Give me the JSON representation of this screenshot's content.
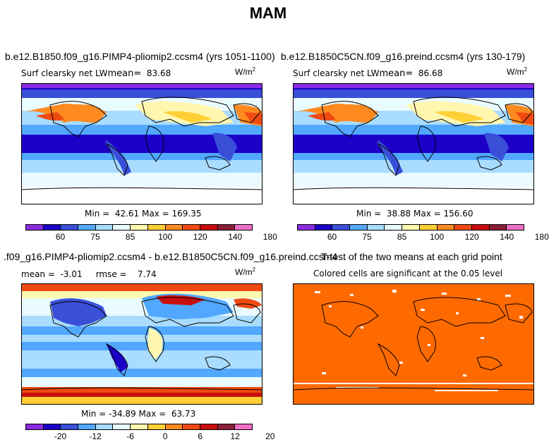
{
  "figure_title": "MAM",
  "colors": {
    "abs_scale": [
      "#8a2be2",
      "#1c00c8",
      "#3a4fd8",
      "#52a8ff",
      "#a9dcff",
      "#e9fbff",
      "#fff7b0",
      "#ffcf36",
      "#ff8a1f",
      "#f04a12",
      "#c80d0d",
      "#8c1f3a",
      "#f070c8"
    ],
    "diff_scale": [
      "#8a2be2",
      "#1c00c8",
      "#3a4fd8",
      "#52a8ff",
      "#a9dcff",
      "#e9fbff",
      "#fff7b0",
      "#ffcf36",
      "#ff8a1f",
      "#f04a12",
      "#c80d0d",
      "#8c1f3a",
      "#f070c8"
    ],
    "ttest_fill": "#ff6a00",
    "coast": "#000000"
  },
  "panels": {
    "p1": {
      "case": "b.e12.B1850.f09_g16.PIMP4-pliomip2.ccsm4 (yrs 1051-1100)",
      "variable": "Surf clearsky net LW",
      "mean_label": "mean=",
      "mean_value": "83.68",
      "units": "W/m",
      "units_sup": "2",
      "min_label": "Min =",
      "min_value": "42.61",
      "max_label": "Max =",
      "max_value": "169.35",
      "ticks": [
        "60",
        "75",
        "85",
        "100",
        "120",
        "140",
        "180"
      ]
    },
    "p2": {
      "case": "b.e12.B1850C5CN.f09_g16.preind.ccsm4 (yrs 130-179)",
      "variable": "Surf clearsky net LW",
      "mean_label": "mean=",
      "mean_value": "86.68",
      "units": "W/m",
      "units_sup": "2",
      "min_label": "Min =",
      "min_value": "38.88",
      "max_label": "Max =",
      "max_value": "156.60",
      "ticks": [
        "60",
        "75",
        "85",
        "100",
        "120",
        "140",
        "180"
      ]
    },
    "p3": {
      "case": ".f09_g16.PIMP4-pliomip2.ccsm4 - b.e12.B1850C5CN.f09_g16.preind.ccsm4",
      "mean_label": "mean =",
      "mean_value": "-3.01",
      "rmse_label": "rmse =",
      "rmse_value": "7.74",
      "units": "W/m",
      "units_sup": "2",
      "min_label": "Min =",
      "min_value": "-34.89",
      "max_label": "Max =",
      "max_value": "63.73",
      "ticks": [
        "-20",
        "-12",
        "-6",
        "0",
        "6",
        "12",
        "20"
      ]
    },
    "p4": {
      "title": "T-test of the two means at each grid point",
      "subtitle": "Colored cells are significant at the 0.05 level"
    }
  }
}
